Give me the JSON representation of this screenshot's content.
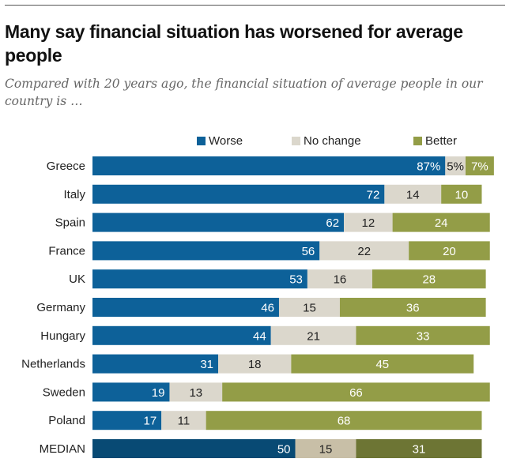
{
  "header": {
    "title": "Many say financial situation has worsened for average people",
    "subtitle": "Compared with 20 years ago, the financial situation of average people in our country is …"
  },
  "colors": {
    "worse": "#0d6199",
    "no_change": "#dbd7cc",
    "better": "#939d47",
    "median_worse": "#084a74",
    "median_no_change": "#c8bfa7",
    "median_better": "#6d7534",
    "label_light": "#ffffff",
    "label_dark": "#222222"
  },
  "chart_data": {
    "type": "bar",
    "orientation": "horizontal",
    "stacked": true,
    "title": "Many say financial situation has worsened for average people",
    "subtitle": "Compared with 20 years ago, the financial situation of average people in our country is …",
    "xlabel": "",
    "ylabel": "",
    "legend": [
      "Worse",
      "No change",
      "Better"
    ],
    "legend_position": "top",
    "grid": false,
    "xlim": [
      0,
      100
    ],
    "categories": [
      "Greece",
      "Italy",
      "Spain",
      "France",
      "UK",
      "Germany",
      "Hungary",
      "Netherlands",
      "Sweden",
      "Poland",
      "MEDIAN"
    ],
    "series": [
      {
        "name": "Worse",
        "values": [
          87,
          72,
          62,
          56,
          53,
          46,
          44,
          31,
          19,
          17,
          50
        ]
      },
      {
        "name": "No change",
        "values": [
          5,
          14,
          12,
          22,
          16,
          15,
          21,
          18,
          13,
          11,
          15
        ]
      },
      {
        "name": "Better",
        "values": [
          7,
          10,
          24,
          20,
          28,
          36,
          33,
          45,
          66,
          68,
          31
        ]
      }
    ],
    "data_labels": [
      [
        "87%",
        "5%",
        "7%"
      ],
      [
        "72",
        "14",
        "10"
      ],
      [
        "62",
        "12",
        "24"
      ],
      [
        "56",
        "22",
        "20"
      ],
      [
        "53",
        "16",
        "28"
      ],
      [
        "46",
        "15",
        "36"
      ],
      [
        "44",
        "21",
        "33"
      ],
      [
        "31",
        "18",
        "45"
      ],
      [
        "19",
        "13",
        "66"
      ],
      [
        "17",
        "11",
        "68"
      ],
      [
        "50",
        "15",
        "31"
      ]
    ]
  }
}
